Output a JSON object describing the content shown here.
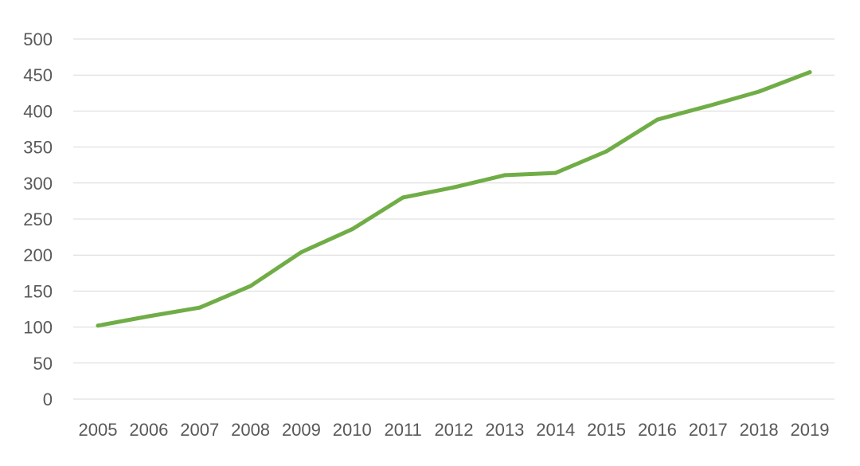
{
  "chart_data": {
    "type": "line",
    "title": "",
    "xlabel": "",
    "ylabel": "",
    "x": [
      "2005",
      "2006",
      "2007",
      "2008",
      "2009",
      "2010",
      "2011",
      "2012",
      "2013",
      "2014",
      "2015",
      "2016",
      "2017",
      "2018",
      "2019"
    ],
    "series": [
      {
        "values": [
          102,
          115,
          127,
          157,
          204,
          236,
          280,
          294,
          311,
          314,
          344,
          388,
          407,
          427,
          454
        ],
        "color": "#70ad47"
      }
    ],
    "ylim": [
      0,
      500
    ],
    "yticks": [
      "0",
      "50",
      "100",
      "150",
      "200",
      "250",
      "300",
      "350",
      "400",
      "450",
      "500"
    ],
    "grid": true,
    "legend": "none"
  }
}
